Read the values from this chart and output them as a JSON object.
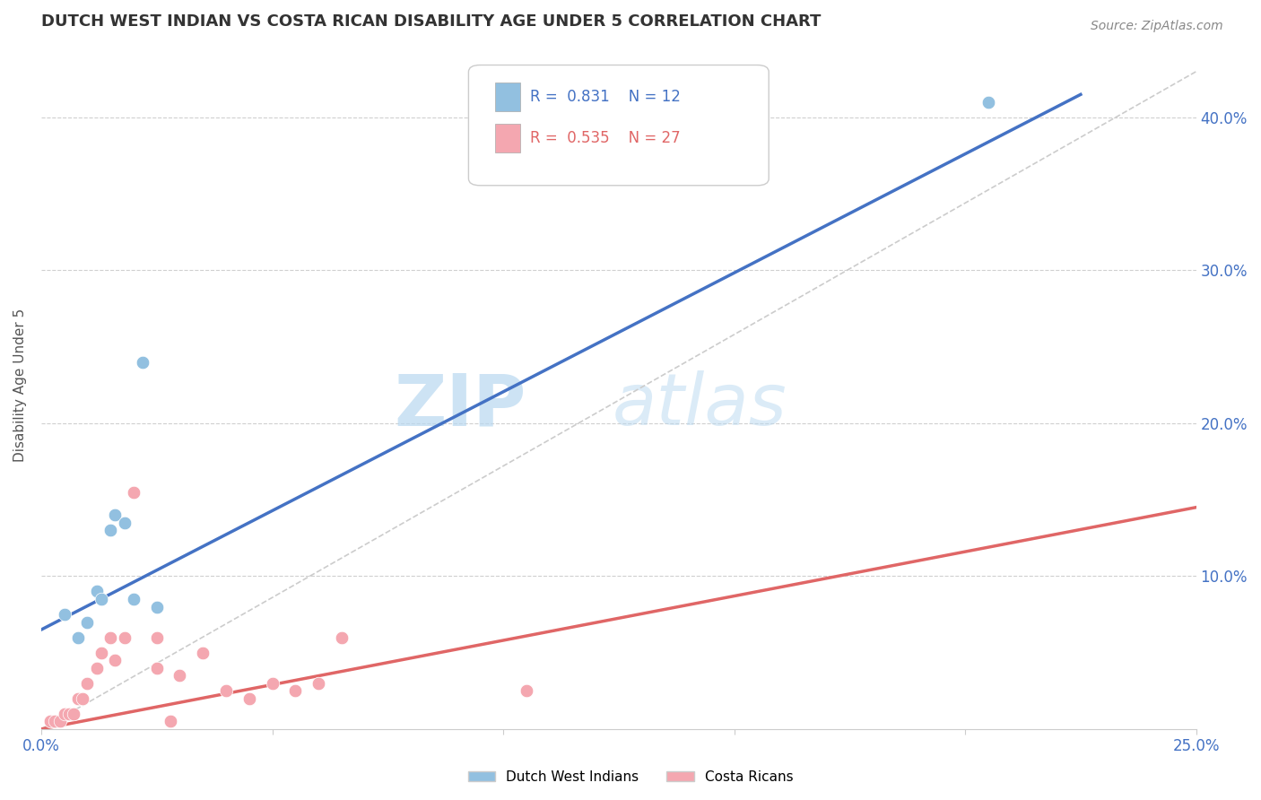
{
  "title": "DUTCH WEST INDIAN VS COSTA RICAN DISABILITY AGE UNDER 5 CORRELATION CHART",
  "source": "Source: ZipAtlas.com",
  "ylabel": "Disability Age Under 5",
  "xlim": [
    0,
    0.25
  ],
  "ylim": [
    0,
    0.45
  ],
  "xticks": [
    0.0,
    0.05,
    0.1,
    0.15,
    0.2,
    0.25
  ],
  "xtick_labels": [
    "0.0%",
    "",
    "",
    "",
    "",
    "25.0%"
  ],
  "yticks": [
    0.0,
    0.1,
    0.2,
    0.3,
    0.4
  ],
  "ytick_labels_right": [
    "",
    "10.0%",
    "20.0%",
    "30.0%",
    "40.0%"
  ],
  "legend_r1": "R =  0.831",
  "legend_n1": "N = 12",
  "legend_r2": "R =  0.535",
  "legend_n2": "N = 27",
  "blue_color": "#92c0e0",
  "pink_color": "#f4a7b0",
  "blue_line_color": "#4472c4",
  "pink_line_color": "#e06666",
  "ref_line_color": "#cccccc",
  "watermark_zip": "ZIP",
  "watermark_atlas": "atlas",
  "blue_scatter_x": [
    0.005,
    0.008,
    0.01,
    0.012,
    0.013,
    0.015,
    0.016,
    0.018,
    0.02,
    0.022,
    0.025,
    0.205
  ],
  "blue_scatter_y": [
    0.075,
    0.06,
    0.07,
    0.09,
    0.085,
    0.13,
    0.14,
    0.135,
    0.085,
    0.24,
    0.08,
    0.41
  ],
  "pink_scatter_x": [
    0.002,
    0.003,
    0.004,
    0.005,
    0.006,
    0.007,
    0.008,
    0.009,
    0.01,
    0.012,
    0.013,
    0.015,
    0.016,
    0.018,
    0.02,
    0.025,
    0.025,
    0.028,
    0.03,
    0.035,
    0.04,
    0.045,
    0.05,
    0.055,
    0.06,
    0.065,
    0.105
  ],
  "pink_scatter_y": [
    0.005,
    0.005,
    0.005,
    0.01,
    0.01,
    0.01,
    0.02,
    0.02,
    0.03,
    0.04,
    0.05,
    0.06,
    0.045,
    0.06,
    0.155,
    0.06,
    0.04,
    0.005,
    0.035,
    0.05,
    0.025,
    0.02,
    0.03,
    0.025,
    0.03,
    0.06,
    0.025
  ],
  "blue_line_x": [
    0.0,
    0.225
  ],
  "blue_line_y": [
    0.065,
    0.415
  ],
  "pink_line_x": [
    0.0,
    0.25
  ],
  "pink_line_y": [
    0.0,
    0.145
  ],
  "ref_line_x": [
    0.0,
    0.25
  ],
  "ref_line_y": [
    0.0,
    0.43
  ],
  "background_color": "#ffffff",
  "title_color": "#333333",
  "axis_color": "#4472c4",
  "grid_color": "#d0d0d0"
}
